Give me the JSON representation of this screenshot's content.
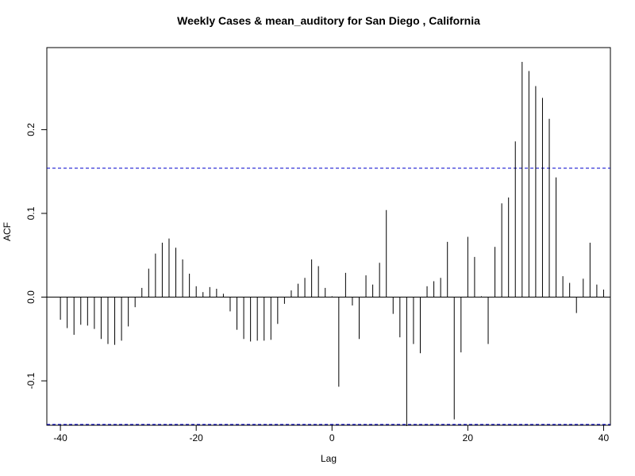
{
  "chart_data": {
    "type": "bar",
    "title": "Weekly Cases & mean_auditory for San Diego , California",
    "xlabel": "Lag",
    "ylabel": "ACF",
    "xlim": [
      -42,
      41
    ],
    "ylim": [
      -0.153,
      0.298
    ],
    "x_ticks": [
      -40,
      -20,
      0,
      20,
      40
    ],
    "x_tick_labels": [
      "-40",
      "-20",
      "0",
      "20",
      "40"
    ],
    "y_ticks": [
      -0.1,
      0.0,
      0.1,
      0.2
    ],
    "y_tick_labels": [
      "-0.1",
      "0.0",
      "0.1",
      "0.2"
    ],
    "confidence_bounds": [
      0.154,
      -0.152
    ],
    "bound_color": "#0000cd",
    "bar_color": "#000000",
    "grid": false,
    "x": [
      -40,
      -39,
      -38,
      -37,
      -36,
      -35,
      -34,
      -33,
      -32,
      -31,
      -30,
      -29,
      -28,
      -27,
      -26,
      -25,
      -24,
      -23,
      -22,
      -21,
      -20,
      -19,
      -18,
      -17,
      -16,
      -15,
      -14,
      -13,
      -12,
      -11,
      -10,
      -9,
      -8,
      -7,
      -6,
      -5,
      -4,
      -3,
      -2,
      -1,
      0,
      1,
      2,
      3,
      4,
      5,
      6,
      7,
      8,
      9,
      10,
      11,
      12,
      13,
      14,
      15,
      16,
      17,
      18,
      19,
      20,
      21,
      22,
      23,
      24,
      25,
      26,
      27,
      28,
      29,
      30,
      31,
      32,
      33,
      34,
      35,
      36,
      37,
      38,
      39,
      40
    ],
    "values": [
      -0.027,
      -0.037,
      -0.045,
      -0.033,
      -0.034,
      -0.038,
      -0.05,
      -0.056,
      -0.057,
      -0.052,
      -0.035,
      -0.012,
      0.011,
      0.034,
      0.052,
      0.065,
      0.07,
      0.059,
      0.045,
      0.028,
      0.013,
      0.006,
      0.012,
      0.01,
      0.004,
      -0.017,
      -0.039,
      -0.05,
      -0.053,
      -0.052,
      -0.052,
      -0.051,
      -0.032,
      -0.008,
      0.008,
      0.016,
      0.023,
      0.045,
      0.037,
      0.011,
      0.001,
      -0.107,
      0.029,
      -0.01,
      -0.05,
      0.026,
      0.015,
      0.041,
      0.104,
      -0.02,
      -0.048,
      -0.154,
      -0.056,
      -0.067,
      0.013,
      0.019,
      0.023,
      0.066,
      -0.146,
      -0.066,
      0.072,
      0.048,
      0.001,
      -0.056,
      0.06,
      0.112,
      0.119,
      0.186,
      0.281,
      0.27,
      0.252,
      0.238,
      0.213,
      0.143,
      0.025,
      0.017,
      -0.019,
      0.022,
      0.065,
      0.015,
      0.009
    ]
  }
}
